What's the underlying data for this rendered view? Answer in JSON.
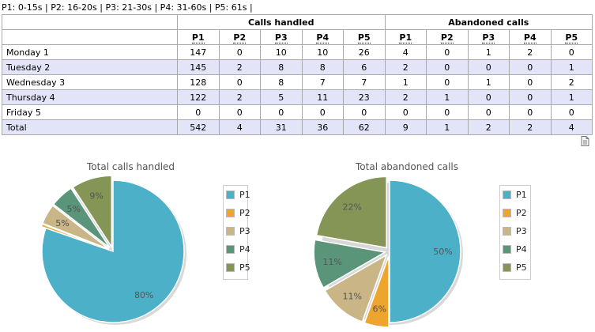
{
  "legend_line": "P1: 0-15s | P2: 16-20s | P3: 21-30s | P4: 31-60s | P5: 61s |",
  "table": {
    "group_calls_handled": "Calls handled",
    "group_abandoned_calls": "Abandoned calls",
    "columns": [
      "P1",
      "P2",
      "P3",
      "P4",
      "P5"
    ],
    "rows": [
      {
        "label": "Monday 1",
        "handled": [
          "147",
          "0",
          "10",
          "10",
          "26"
        ],
        "abandoned": [
          "4",
          "0",
          "1",
          "2",
          "0"
        ]
      },
      {
        "label": "Tuesday 2",
        "handled": [
          "145",
          "2",
          "8",
          "8",
          "6"
        ],
        "abandoned": [
          "2",
          "0",
          "0",
          "0",
          "1"
        ]
      },
      {
        "label": "Wednesday 3",
        "handled": [
          "128",
          "0",
          "8",
          "7",
          "7"
        ],
        "abandoned": [
          "1",
          "0",
          "1",
          "0",
          "2"
        ]
      },
      {
        "label": "Thursday 4",
        "handled": [
          "122",
          "2",
          "5",
          "11",
          "23"
        ],
        "abandoned": [
          "2",
          "1",
          "0",
          "0",
          "1"
        ]
      },
      {
        "label": "Friday 5",
        "handled": [
          "0",
          "0",
          "0",
          "0",
          "0"
        ],
        "abandoned": [
          "0",
          "0",
          "0",
          "0",
          "0"
        ]
      }
    ],
    "total": {
      "label": "Total",
      "handled": [
        "542",
        "4",
        "31",
        "36",
        "62"
      ],
      "abandoned": [
        "9",
        "1",
        "2",
        "2",
        "4"
      ]
    }
  },
  "icons": {
    "export": "document-icon"
  },
  "colors": {
    "P1": "#4bb0c8",
    "P2": "#eda52e",
    "P3": "#c9b586",
    "P4": "#5a9579",
    "P5": "#849556",
    "row_alt": "#e4e4f8"
  },
  "chart_data": [
    {
      "type": "pie",
      "title": "Total calls handled",
      "labels": [
        "P1",
        "P2",
        "P3",
        "P4",
        "P5"
      ],
      "values": [
        542,
        4,
        31,
        36,
        62
      ],
      "percent_labels": [
        "80%",
        "",
        "5%",
        "5%",
        "9%"
      ],
      "legend": "right"
    },
    {
      "type": "pie",
      "title": "Total abandoned calls",
      "labels": [
        "P1",
        "P2",
        "P3",
        "P4",
        "P5"
      ],
      "values": [
        9,
        1,
        2,
        2,
        4
      ],
      "percent_labels": [
        "50%",
        "6%",
        "11%",
        "11%",
        "22%"
      ],
      "legend": "right"
    }
  ]
}
